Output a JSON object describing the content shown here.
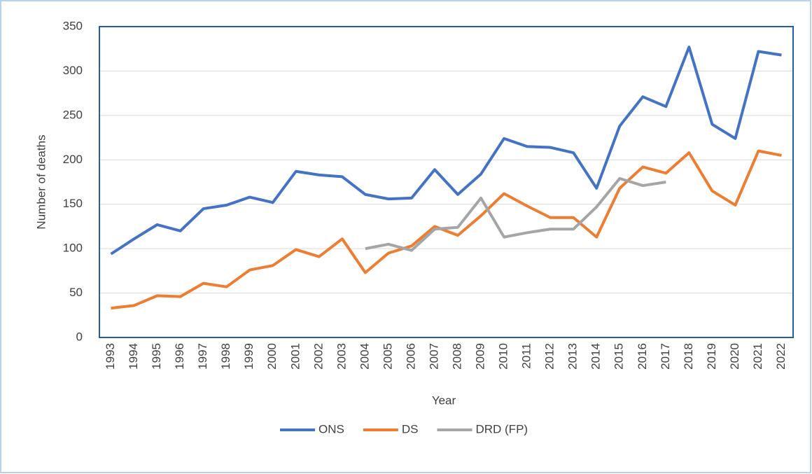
{
  "chart_data": {
    "type": "line",
    "x_label": "Year",
    "y_label": "Number of deaths",
    "categories": [
      "1993",
      "1994",
      "1995",
      "1996",
      "1997",
      "1998",
      "1999",
      "2000",
      "2001",
      "2002",
      "2003",
      "2004",
      "2005",
      "2006",
      "2007",
      "2008",
      "2009",
      "2010",
      "2011",
      "2012",
      "2013",
      "2014",
      "2015",
      "2016",
      "2017",
      "2018",
      "2019",
      "2020",
      "2021",
      "2022"
    ],
    "series": [
      {
        "name": "ONS",
        "color": "#4472c4",
        "values": [
          94,
          111,
          127,
          120,
          145,
          149,
          158,
          152,
          187,
          183,
          181,
          161,
          156,
          157,
          189,
          161,
          184,
          224,
          215,
          214,
          208,
          168,
          238,
          271,
          260,
          327,
          240,
          224,
          322,
          318
        ]
      },
      {
        "name": "DS",
        "color": "#ed7d31",
        "values": [
          33,
          36,
          47,
          46,
          61,
          57,
          76,
          81,
          99,
          91,
          111,
          73,
          95,
          103,
          125,
          115,
          137,
          162,
          148,
          135,
          135,
          113,
          168,
          192,
          185,
          208,
          165,
          149,
          210,
          205
        ]
      },
      {
        "name": "DRD (FP)",
        "color": "#a5a5a5",
        "values": [
          null,
          null,
          null,
          null,
          null,
          null,
          null,
          null,
          null,
          null,
          null,
          100,
          105,
          98,
          122,
          124,
          157,
          113,
          118,
          122,
          122,
          147,
          179,
          171,
          175,
          null,
          null,
          null,
          null,
          null
        ]
      }
    ],
    "ylim": [
      0,
      350
    ],
    "yticks": [
      0,
      50,
      100,
      150,
      200,
      250,
      300,
      350
    ],
    "grid": true,
    "legend": "bottom"
  }
}
